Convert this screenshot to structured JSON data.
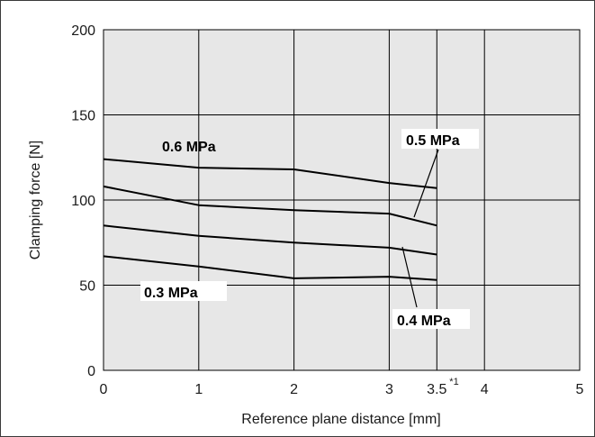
{
  "chart_data": {
    "type": "line",
    "title": "",
    "xlabel": "Reference plane distance [mm]",
    "ylabel": "Clamping force [N]",
    "xlim": [
      0,
      5
    ],
    "ylim": [
      0,
      200
    ],
    "x_ticks": [
      {
        "value": 0,
        "label": "0"
      },
      {
        "value": 1,
        "label": "1"
      },
      {
        "value": 2,
        "label": "2"
      },
      {
        "value": 3,
        "label": "3"
      },
      {
        "value": 3.5,
        "label": "3.5",
        "footnote": "*1"
      },
      {
        "value": 4,
        "label": "4"
      },
      {
        "value": 5,
        "label": "5"
      }
    ],
    "y_ticks": [
      0,
      50,
      100,
      150,
      200
    ],
    "grid": true,
    "plot_background": "#e7e7e7",
    "line_color": "#000000",
    "series": [
      {
        "name": "0.6 MPa",
        "x": [
          0,
          1,
          2,
          3,
          3.5
        ],
        "y": [
          124,
          119,
          118,
          110,
          107
        ]
      },
      {
        "name": "0.5 MPa",
        "x": [
          0,
          1,
          2,
          3,
          3.5
        ],
        "y": [
          108,
          97,
          94,
          92,
          85
        ]
      },
      {
        "name": "0.4 MPa",
        "x": [
          0,
          1,
          2,
          3,
          3.5
        ],
        "y": [
          85,
          79,
          75,
          72,
          68
        ]
      },
      {
        "name": "0.3 MPa",
        "x": [
          0,
          1,
          2,
          3,
          3.5
        ],
        "y": [
          67,
          61,
          54,
          55,
          53
        ]
      }
    ]
  }
}
